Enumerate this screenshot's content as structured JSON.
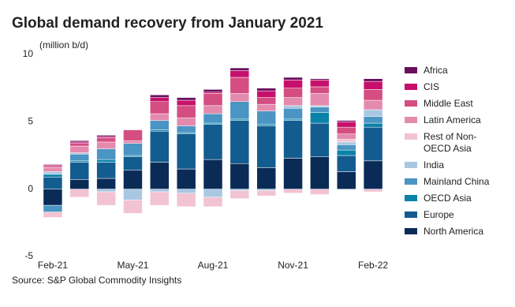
{
  "chart_data": {
    "type": "stacked_bar",
    "title": "Global demand recovery from January 2021",
    "y_label": "(million b/d)",
    "source": "Source: S&P Global Commodity Insights",
    "categories": [
      "Feb-21",
      null,
      null,
      "May-21",
      null,
      null,
      "Aug-21",
      null,
      null,
      "Nov-21",
      null,
      null,
      "Feb-22"
    ],
    "ylim": [
      -5,
      10
    ],
    "yticks": [
      -5,
      0,
      5,
      10
    ],
    "grid": false,
    "legend": "right",
    "series": [
      {
        "name": "North America",
        "color": "#0b2b57",
        "values": [
          -1.2,
          0.7,
          0.8,
          1.4,
          2.0,
          1.5,
          2.2,
          1.9,
          1.6,
          2.3,
          2.4,
          1.3,
          2.1
        ]
      },
      {
        "name": "Europe",
        "color": "#135c8f",
        "values": [
          0.9,
          1.3,
          1.2,
          1.0,
          2.3,
          2.6,
          2.6,
          3.2,
          3.1,
          2.8,
          2.5,
          1.2,
          2.5
        ]
      },
      {
        "name": "OECD Asia",
        "color": "#0b82a8",
        "values": [
          0.2,
          0.1,
          0.2,
          0.1,
          0.1,
          0.1,
          0.1,
          0.1,
          0.1,
          0.1,
          0.8,
          0.4,
          0.3
        ]
      },
      {
        "name": "Mainland China",
        "color": "#4a95c3",
        "values": [
          -0.5,
          0.5,
          0.8,
          0.9,
          0.7,
          0.5,
          0.7,
          1.3,
          1.0,
          0.8,
          0.4,
          0.4,
          0.5
        ]
      },
      {
        "name": "India",
        "color": "#a8c8e2",
        "values": [
          0.2,
          0.1,
          -0.2,
          -0.8,
          -0.2,
          -0.3,
          -0.6,
          -0.1,
          -0.1,
          0.2,
          0.1,
          0.2,
          0.5
        ]
      },
      {
        "name": "Rest of Non-OECD Asia",
        "color": "#f1c3d3",
        "values": [
          -0.4,
          -0.6,
          -1.0,
          -1.0,
          -1.0,
          -1.0,
          -0.7,
          -0.6,
          -0.4,
          -0.3,
          -0.4,
          0.2,
          -0.2
        ]
      },
      {
        "name": "Latin America",
        "color": "#e48aad",
        "values": [
          0.3,
          0.5,
          0.5,
          0.2,
          0.5,
          0.6,
          0.6,
          0.6,
          0.5,
          0.6,
          0.9,
          0.4,
          0.7
        ]
      },
      {
        "name": "Middle East",
        "color": "#d44e81",
        "values": [
          0.1,
          0.2,
          0.3,
          0.8,
          0.9,
          0.9,
          0.9,
          1.2,
          0.5,
          0.7,
          0.5,
          0.5,
          0.8
        ]
      },
      {
        "name": "CIS",
        "color": "#c7106b",
        "values": [
          0.1,
          0.1,
          0.1,
          0.0,
          0.3,
          0.4,
          0.1,
          0.5,
          0.5,
          0.6,
          0.5,
          0.4,
          0.6
        ]
      },
      {
        "name": "Africa",
        "color": "#6b0e5e",
        "values": [
          0.05,
          0.1,
          0.1,
          0.0,
          0.2,
          0.2,
          0.2,
          0.2,
          0.2,
          0.2,
          0.1,
          0.1,
          0.2
        ]
      }
    ]
  }
}
